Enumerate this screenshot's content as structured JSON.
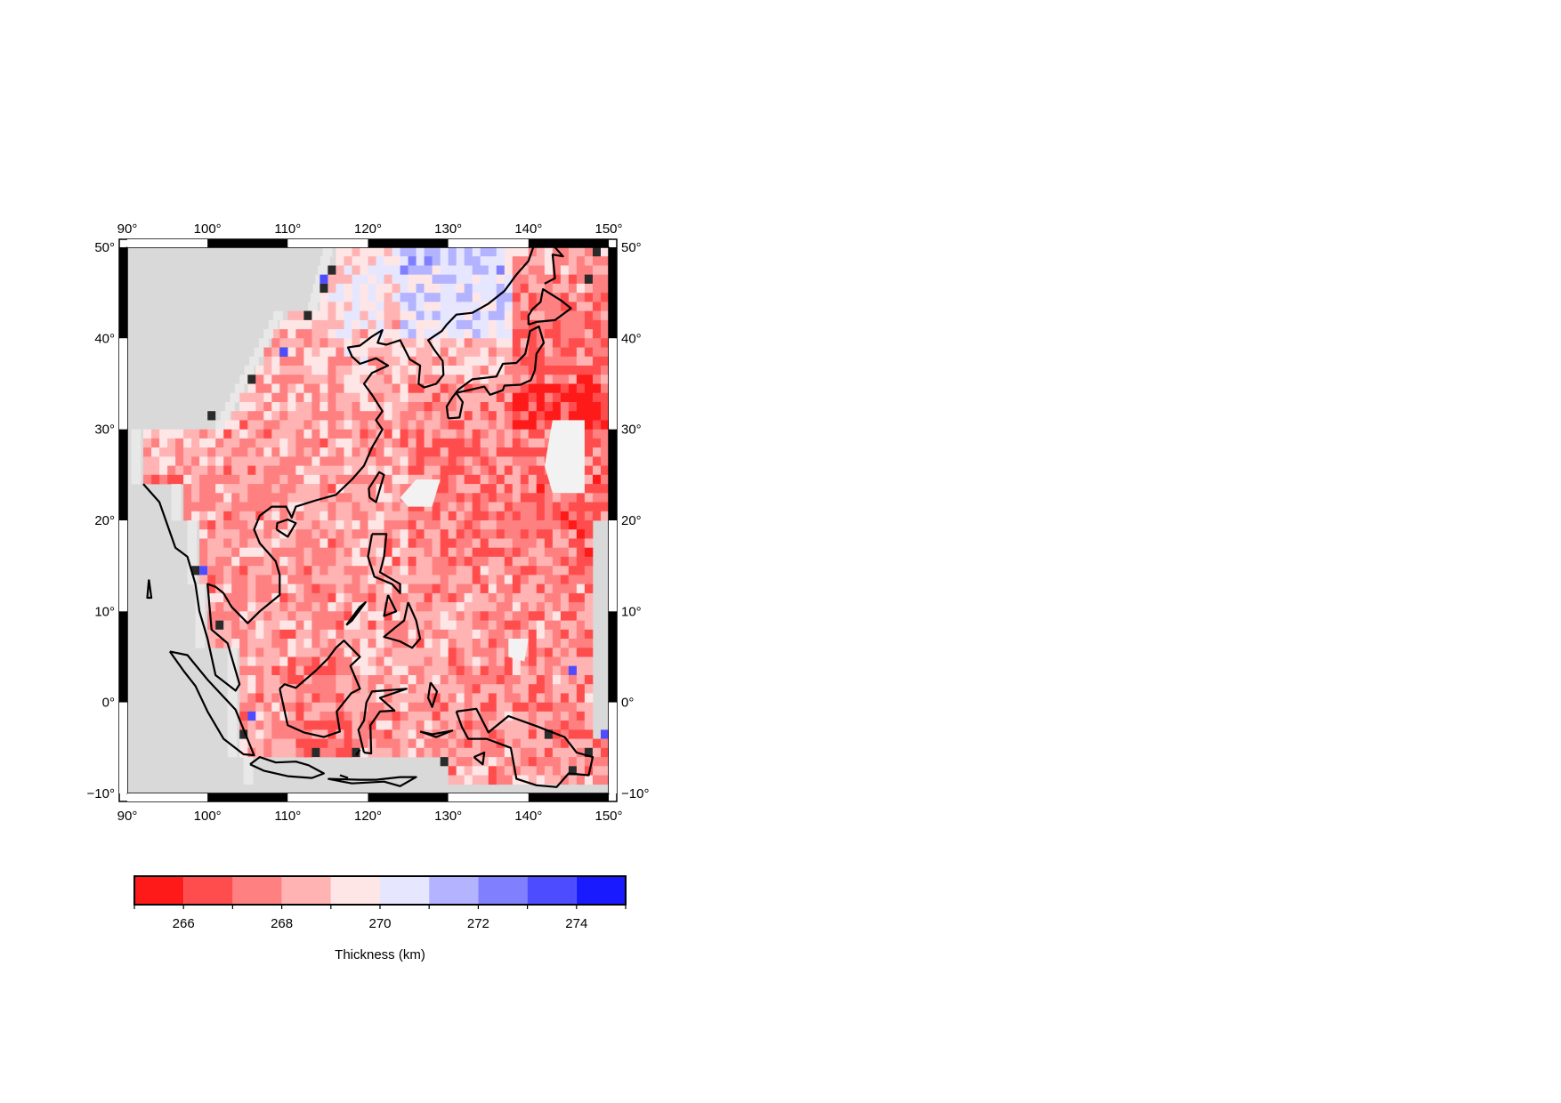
{
  "map": {
    "lon_min": 90,
    "lon_max": 150,
    "lat_min": -10,
    "lat_max": 50,
    "lon_ticks": [
      90,
      100,
      110,
      120,
      130,
      140,
      150
    ],
    "lat_ticks": [
      -10,
      0,
      10,
      20,
      30,
      40,
      50
    ],
    "lon_tick_labels": [
      "90",
      "100",
      "110",
      "120",
      "130",
      "140",
      "150"
    ],
    "lat_tick_labels": [
      "−10",
      "0",
      "10",
      "20",
      "30",
      "40",
      "50"
    ],
    "degree_symbol": "°",
    "land_color": "#d9d9d9",
    "nodata_color": "#f2f2f2",
    "coastline_color": "#000000",
    "frame_pattern": "alternating black/white 10° segments"
  },
  "colorbar": {
    "label": "Thickness (km)",
    "min": 265,
    "max": 275,
    "tick_values": [
      266,
      268,
      270,
      272,
      274
    ],
    "tick_labels": [
      "266",
      "268",
      "270",
      "272",
      "274"
    ],
    "bins": [
      {
        "from": 265,
        "to": 266,
        "color": "#ff1a1a"
      },
      {
        "from": 266,
        "to": 267,
        "color": "#ff4d4d"
      },
      {
        "from": 267,
        "to": 268,
        "color": "#ff8080"
      },
      {
        "from": 268,
        "to": 269,
        "color": "#ffb3b3"
      },
      {
        "from": 269,
        "to": 270,
        "color": "#ffe6e6"
      },
      {
        "from": 270,
        "to": 271,
        "color": "#e6e6ff"
      },
      {
        "from": 271,
        "to": 272,
        "color": "#b3b3ff"
      },
      {
        "from": 272,
        "to": 273,
        "color": "#8080ff"
      },
      {
        "from": 273,
        "to": 274,
        "color": "#4d4dff"
      },
      {
        "from": 274,
        "to": 275,
        "color": "#1a1aff"
      }
    ]
  }
}
